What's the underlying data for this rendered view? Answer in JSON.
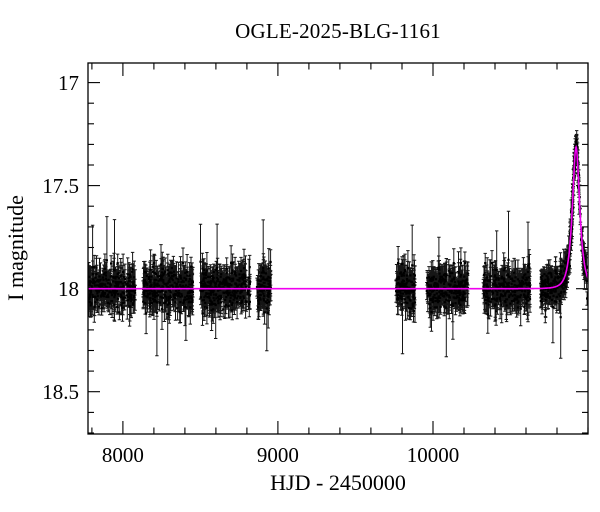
{
  "page": {
    "background": "#ffffff"
  },
  "chart_data": {
    "type": "scatter",
    "title": "OGLE-2025-BLG-1161",
    "xlabel": "HJD - 2450000",
    "ylabel": "I magnitude",
    "grid": false,
    "legend": null,
    "x_axis": {
      "min": 7775,
      "max": 11000,
      "minor_step": 200,
      "major_ticks": [
        {
          "value": 8000,
          "label": "8000"
        },
        {
          "value": 9000,
          "label": "9000"
        },
        {
          "value": 10000,
          "label": "10000"
        }
      ]
    },
    "y_axis": {
      "min": 16.905,
      "max": 18.705,
      "inverted": true,
      "minor_step": 0.1,
      "major_ticks": [
        {
          "value": 17,
          "label": "17"
        },
        {
          "value": 17.5,
          "label": "17.5"
        },
        {
          "value": 18,
          "label": "18"
        },
        {
          "value": 18.5,
          "label": "18.5"
        }
      ]
    },
    "baseline_mag": 18.0,
    "marker": {
      "color": "#000000",
      "size": 2.2
    },
    "errorbar": {
      "color": "#161616",
      "cap_halfwidth": 1.7
    },
    "model_curve": {
      "kind": "paczynski-point-lens",
      "color": "#f000f0",
      "t0": 10923,
      "tE": 37,
      "u0": 0.6,
      "baseline_mag": 18.0,
      "peak_mag": 17.32
    },
    "seasons": [
      {
        "t_start": 7778,
        "t_end": 8080,
        "n": 270,
        "sigma": 0.046,
        "err_min": 0.035,
        "err_max": 0.1,
        "outliers": 3
      },
      {
        "t_start": 8130,
        "t_end": 8452,
        "n": 290,
        "sigma": 0.046,
        "err_min": 0.035,
        "err_max": 0.1,
        "outliers": 3
      },
      {
        "t_start": 8497,
        "t_end": 8820,
        "n": 310,
        "sigma": 0.046,
        "err_min": 0.035,
        "err_max": 0.1,
        "outliers": 3
      },
      {
        "t_start": 8865,
        "t_end": 8955,
        "n": 95,
        "sigma": 0.048,
        "err_min": 0.035,
        "err_max": 0.1,
        "outliers": 2
      },
      {
        "t_start": 9760,
        "t_end": 9885,
        "n": 130,
        "sigma": 0.046,
        "err_min": 0.035,
        "err_max": 0.1,
        "outliers": 2
      },
      {
        "t_start": 9960,
        "t_end": 10226,
        "n": 250,
        "sigma": 0.046,
        "err_min": 0.035,
        "err_max": 0.1,
        "outliers": 3
      },
      {
        "t_start": 10322,
        "t_end": 10626,
        "n": 270,
        "sigma": 0.046,
        "err_min": 0.035,
        "err_max": 0.1,
        "outliers": 3
      },
      {
        "t_start": 10695,
        "t_end": 10995,
        "n": 345,
        "sigma": 0.042,
        "err_min": 0.03,
        "err_max": 0.085,
        "outliers": 2,
        "event": true,
        "segments": [
          {
            "from": 10695,
            "to": 10880,
            "frac": 0.6
          },
          {
            "from": 10880,
            "to": 10942,
            "frac": 0.3
          },
          {
            "from": 10942,
            "to": 10995,
            "frac": 0.1
          }
        ]
      }
    ]
  }
}
